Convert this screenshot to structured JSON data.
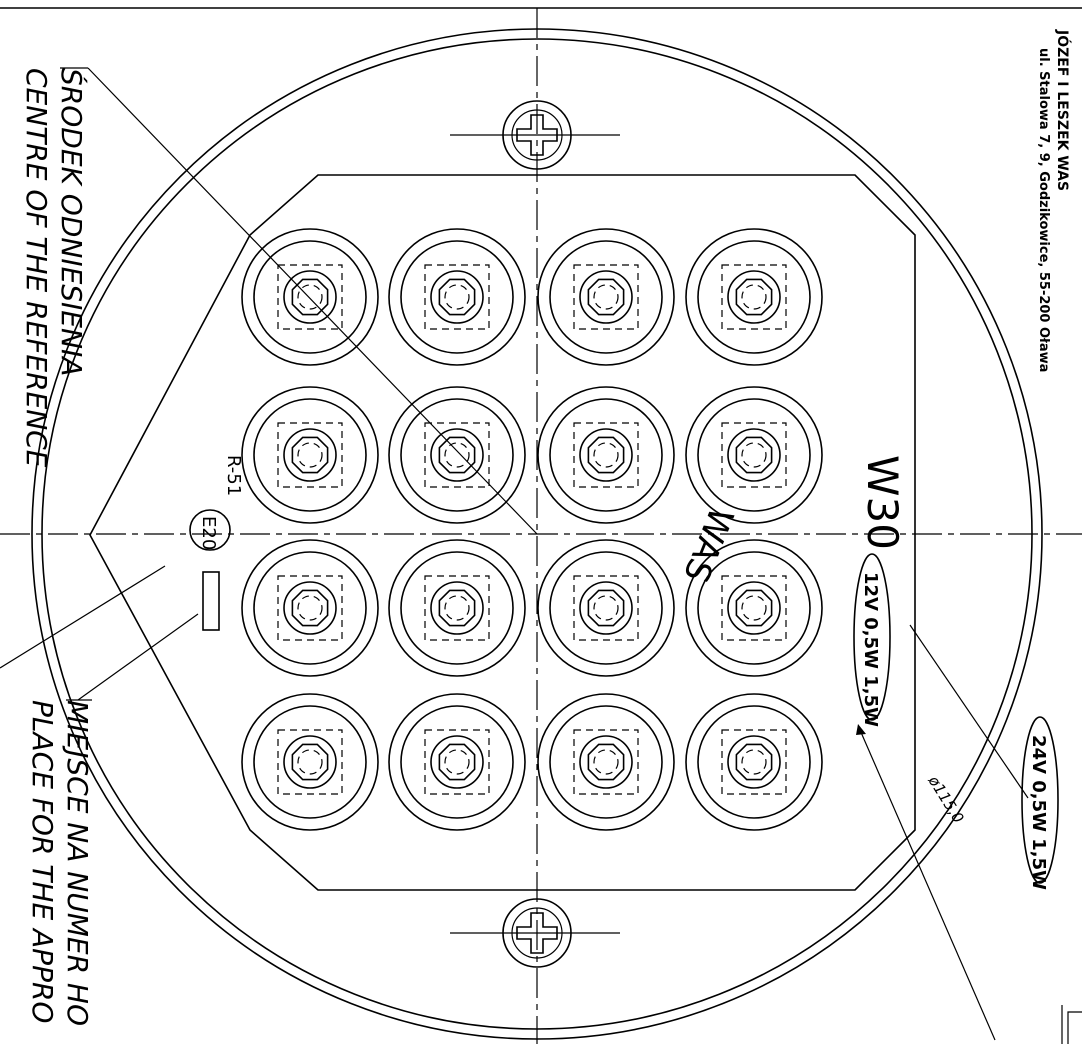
{
  "manufacturer": {
    "name": "JÓZEF I LESZEK WAS",
    "address": "ul. Stalowa 7, 9, Godzikowice, 55-200 Oława"
  },
  "labels": {
    "reference_pl": "ŚRODEK ODNIESIENIA",
    "reference_en": "CENTRE OF THE REFERENCE",
    "approval_pl": "MIEJSCE NA NUMER HO",
    "approval_en": "PLACE FOR THE APPRO",
    "model": "W30",
    "brand": "WAS",
    "voltage_12": "12V 0,5W 1,5W",
    "voltage_24": "24V 0,5W 1,5W",
    "regulation": "R-51",
    "approval_mark": "E20",
    "diameter": "ø115,0"
  },
  "led_grid": {
    "rows": 4,
    "cols": 4
  }
}
